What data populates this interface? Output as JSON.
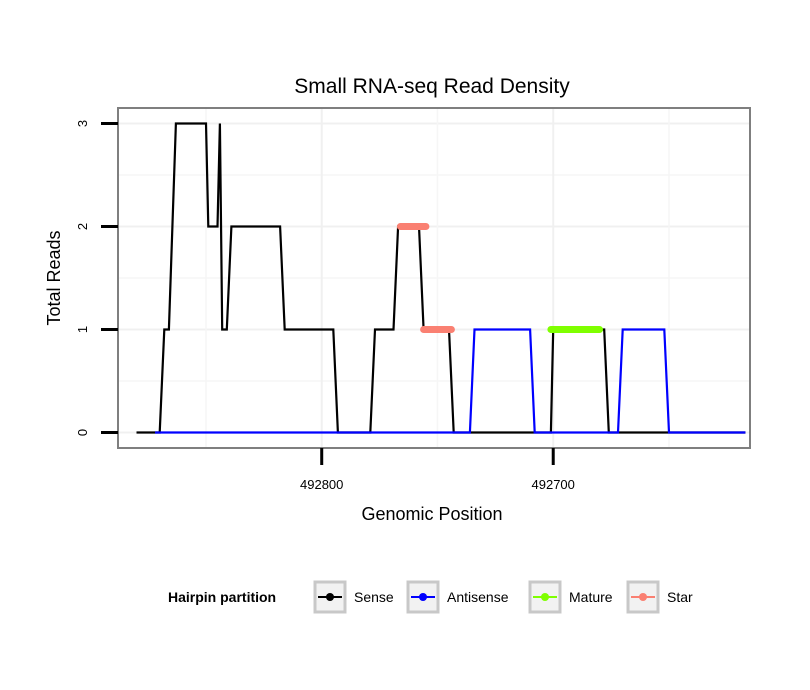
{
  "chart_data": {
    "type": "line",
    "title": "Small RNA-seq Read Density",
    "xlabel": "Genomic Position",
    "ylabel": "Total Reads",
    "x_reversed": true,
    "xlim": [
      492888,
      492615
    ],
    "ylim": [
      -0.15,
      3.15
    ],
    "x_ticks": [
      492800,
      492700
    ],
    "x_tick_labels": [
      "492800",
      "492700"
    ],
    "y_ticks": [
      0,
      1,
      2,
      3
    ],
    "y_tick_labels": [
      "0",
      "1",
      "2",
      "3"
    ],
    "grid": true,
    "legend": {
      "title": "Hairpin partition",
      "position": "bottom",
      "entries": [
        {
          "label": "Sense",
          "color": "#000000"
        },
        {
          "label": "Antisense",
          "color": "#0000ff"
        },
        {
          "label": "Mature",
          "color": "#7fff00"
        },
        {
          "label": "Star",
          "color": "#fa8072"
        }
      ]
    },
    "series": [
      {
        "name": "Sense",
        "color": "#000000",
        "width": 2.2,
        "x": [
          492880,
          492870,
          492868,
          492866,
          492863,
          492850,
          492849,
          492845,
          492844,
          492843,
          492841,
          492839,
          492836,
          492818,
          492816,
          492795,
          492793,
          492779,
          492777,
          492769,
          492767,
          492758,
          492756,
          492745,
          492743,
          492701,
          492700,
          492678,
          492676,
          492617
        ],
        "y": [
          0,
          0,
          1,
          1,
          3,
          3,
          2,
          2,
          3,
          1,
          1,
          2,
          2,
          2,
          1,
          1,
          0,
          0,
          1,
          1,
          2,
          2,
          1,
          1,
          0,
          0,
          1,
          1,
          0,
          0
        ]
      },
      {
        "name": "Antisense",
        "color": "#0000ff",
        "width": 2.2,
        "x": [
          492872,
          492736,
          492734,
          492710,
          492708,
          492680,
          492677,
          492672,
          492670,
          492652,
          492650,
          492617
        ],
        "y": [
          0,
          0,
          1,
          1,
          0,
          0,
          0,
          0,
          1,
          1,
          0,
          0
        ]
      },
      {
        "name": "Mature",
        "color": "#7fff00",
        "width": 7,
        "x": [
          492701,
          492680
        ],
        "y": [
          1,
          1
        ]
      },
      {
        "name": "Star",
        "color": "#fa8072",
        "width": 7,
        "x": [
          492766,
          492755
        ],
        "y": [
          2,
          2
        ]
      },
      {
        "name": "Star",
        "color": "#fa8072",
        "width": 7,
        "x": [
          492756,
          492744
        ],
        "y": [
          1,
          1
        ]
      }
    ]
  }
}
